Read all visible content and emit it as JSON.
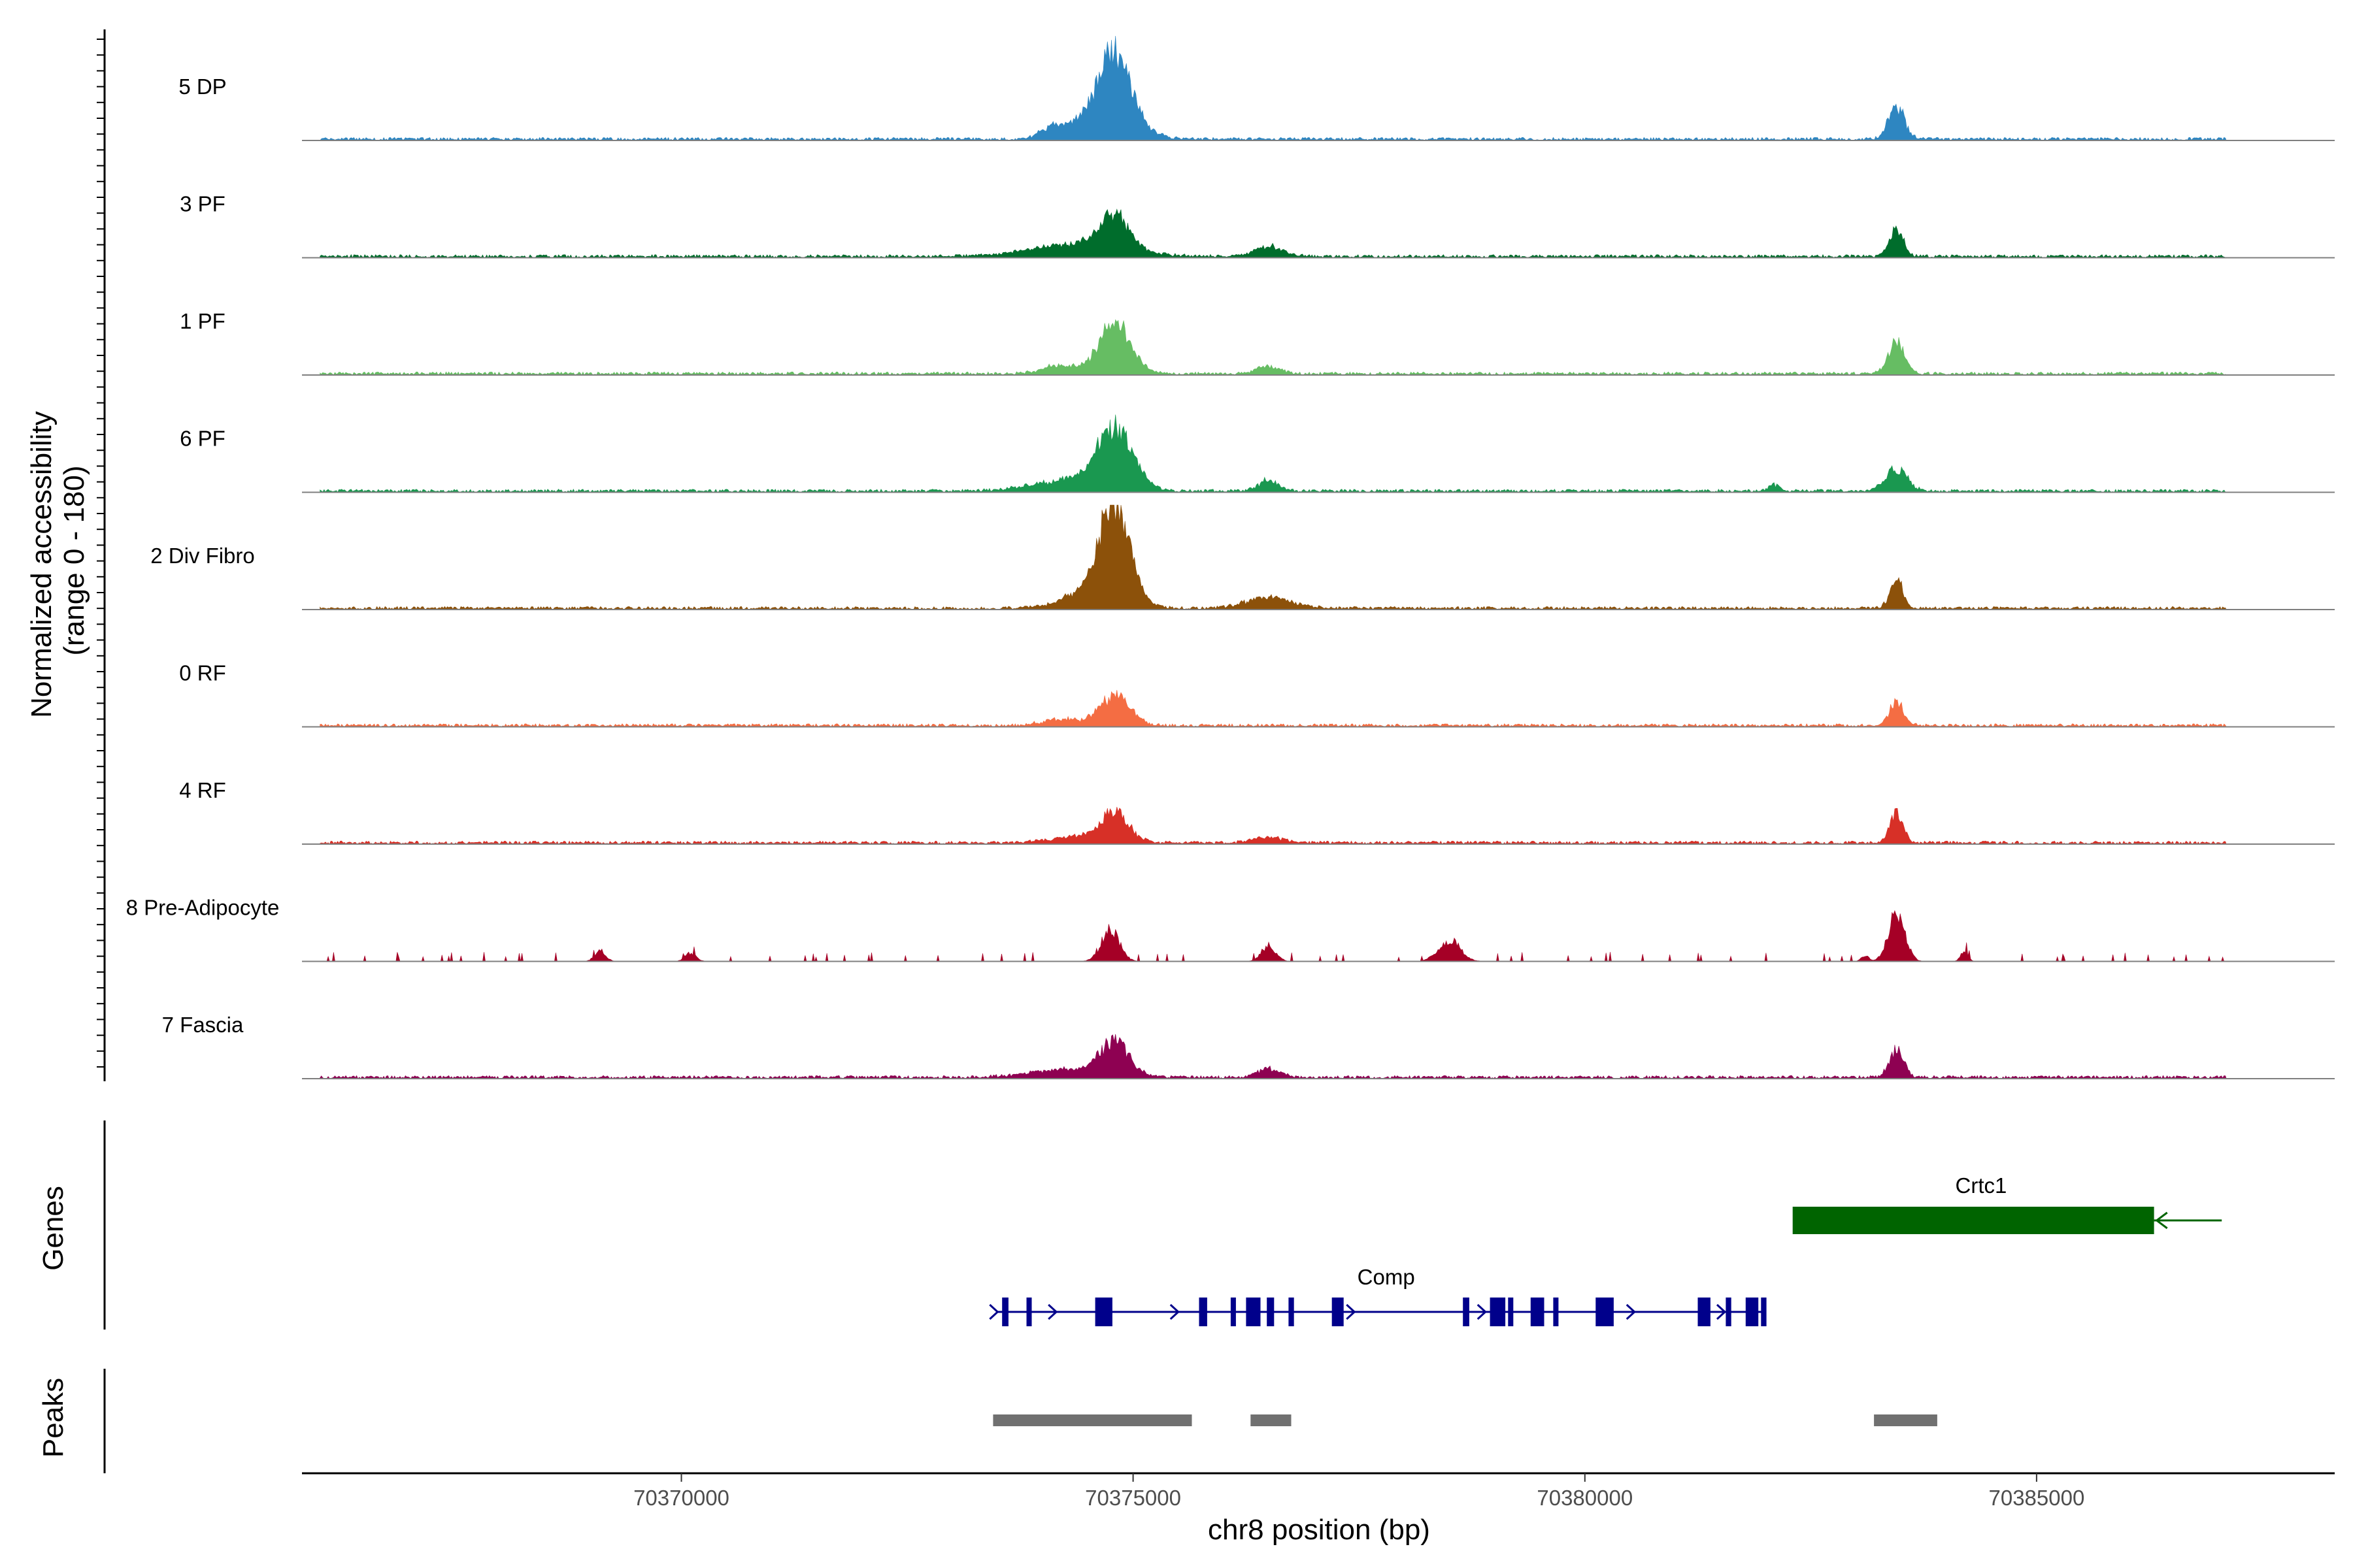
{
  "chart_data": {
    "type": "area",
    "title": "",
    "xlabel": "chr8 position (bp)",
    "ylabel": "Normalized accessibility\n(range 0 - 180)",
    "ylabel_line1": "Normalized accessibility",
    "ylabel_line2": "(range 0 - 180)",
    "xlim": [
      70365800,
      70388300
    ],
    "ylim": [
      0,
      180
    ],
    "x_ticks": [
      70370000,
      70375000,
      70380000,
      70385000
    ],
    "x_tick_labels": [
      "70370000",
      "70375000",
      "70380000",
      "70385000"
    ],
    "tracks": [
      {
        "name": "5 DP",
        "color": "#2E86C1",
        "peaks": [
          [
            70374800,
            0.55,
            170
          ],
          [
            70374700,
            0.3,
            300
          ],
          [
            70374100,
            0.1,
            120
          ],
          [
            70383450,
            0.3,
            90
          ]
        ]
      },
      {
        "name": "3 PF",
        "color": "#006D2C",
        "peaks": [
          [
            70374800,
            0.33,
            160
          ],
          [
            70374400,
            0.12,
            500
          ],
          [
            70376500,
            0.1,
            150
          ],
          [
            70383450,
            0.25,
            80
          ]
        ]
      },
      {
        "name": "1 PF",
        "color": "#66BD63",
        "peaks": [
          [
            70374800,
            0.48,
            170
          ],
          [
            70374200,
            0.08,
            200
          ],
          [
            70376500,
            0.08,
            120
          ],
          [
            70383450,
            0.3,
            90
          ]
        ]
      },
      {
        "name": "6 PF",
        "color": "#1A9850",
        "peaks": [
          [
            70374800,
            0.55,
            200
          ],
          [
            70374300,
            0.1,
            400
          ],
          [
            70376500,
            0.1,
            110
          ],
          [
            70383450,
            0.2,
            120
          ],
          [
            70382100,
            0.06,
            60
          ]
        ]
      },
      {
        "name": "2 Div Fibro",
        "color": "#8C510A",
        "peaks": [
          [
            70374800,
            0.85,
            160
          ],
          [
            70374600,
            0.2,
            300
          ],
          [
            70376500,
            0.1,
            250
          ],
          [
            70383450,
            0.3,
            70
          ]
        ]
      },
      {
        "name": "0 RF",
        "color": "#F46D43",
        "peaks": [
          [
            70374800,
            0.28,
            170
          ],
          [
            70374200,
            0.06,
            200
          ],
          [
            70383450,
            0.22,
            80
          ]
        ]
      },
      {
        "name": "4 RF",
        "color": "#D73027",
        "peaks": [
          [
            70374800,
            0.28,
            150
          ],
          [
            70374400,
            0.06,
            300
          ],
          [
            70376500,
            0.06,
            150
          ],
          [
            70383450,
            0.3,
            70
          ]
        ]
      },
      {
        "name": "8 Pre-Adipocyte",
        "color": "#A50026",
        "peaks": [
          [
            70374750,
            0.3,
            100
          ],
          [
            70376500,
            0.15,
            80
          ],
          [
            70378500,
            0.2,
            120
          ],
          [
            70383450,
            0.48,
            90
          ],
          [
            70369100,
            0.1,
            60
          ],
          [
            70370100,
            0.08,
            60
          ],
          [
            70383100,
            0.06,
            40
          ],
          [
            70384200,
            0.1,
            40
          ]
        ]
      },
      {
        "name": "7 Fascia",
        "color": "#8E0152",
        "peaks": [
          [
            70374800,
            0.3,
            160
          ],
          [
            70374300,
            0.08,
            400
          ],
          [
            70376500,
            0.08,
            120
          ],
          [
            70383450,
            0.26,
            80
          ]
        ]
      }
    ],
    "genes_title": "Genes",
    "genes": [
      {
        "name": "Crtc1",
        "strand": "-",
        "start": 70382300,
        "end": 70387050,
        "color": "#006400"
      },
      {
        "name": "Comp",
        "strand": "+",
        "start": 70373500,
        "end": 70382000,
        "color": "#00008B"
      }
    ],
    "peaks_title": "Peaks",
    "peak_regions": [
      [
        70373450,
        70375650
      ],
      [
        70376300,
        70376750
      ],
      [
        70383200,
        70383900
      ]
    ]
  }
}
